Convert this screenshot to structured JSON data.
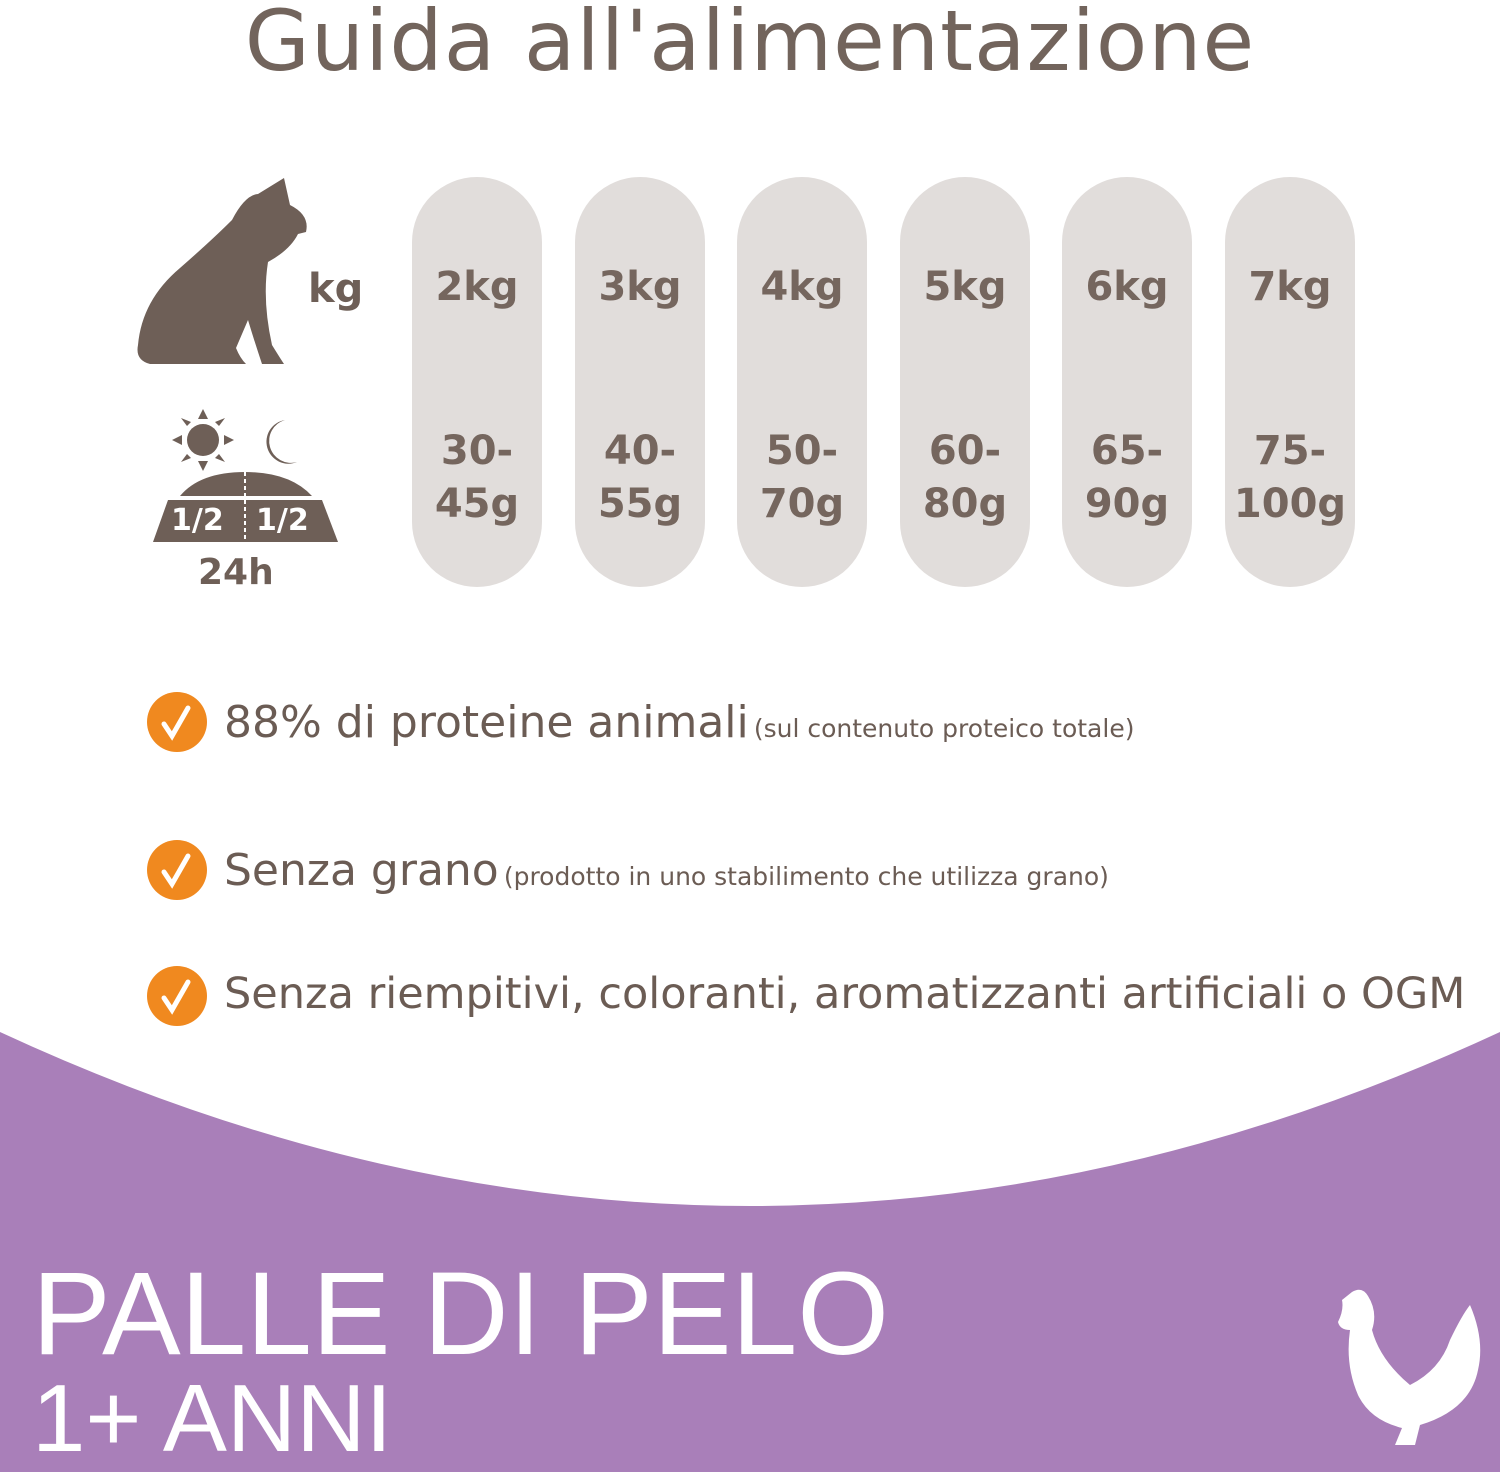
{
  "header": {
    "title": "Guida all'alimentazione"
  },
  "guide": {
    "weight_label": "kg",
    "portion_labels": [
      "1/2",
      "1/2"
    ],
    "daily_label": "24h",
    "columns": [
      {
        "weight": "2kg",
        "amount_lines": [
          "30-",
          "45g"
        ]
      },
      {
        "weight": "3kg",
        "amount_lines": [
          "40-",
          "55g"
        ]
      },
      {
        "weight": "4kg",
        "amount_lines": [
          "50-",
          "70g"
        ]
      },
      {
        "weight": "5kg",
        "amount_lines": [
          "60-",
          "80g"
        ]
      },
      {
        "weight": "6kg",
        "amount_lines": [
          "65-",
          "90g"
        ]
      },
      {
        "weight": "7kg",
        "amount_lines": [
          "75-",
          "100g"
        ]
      }
    ]
  },
  "benefits": [
    {
      "main": "88% di proteine animali",
      "note": "(sul contenuto proteico totale)"
    },
    {
      "main": "Senza grano",
      "note": "(prodotto in uno stabilimento che utilizza grano)"
    },
    {
      "main": "Senza riempitivi, coloranti, aromatizzanti artificiali o OGM"
    }
  ],
  "footer": {
    "title": "PALLE DI PELO",
    "subtitle": "1+ ANNI"
  }
}
